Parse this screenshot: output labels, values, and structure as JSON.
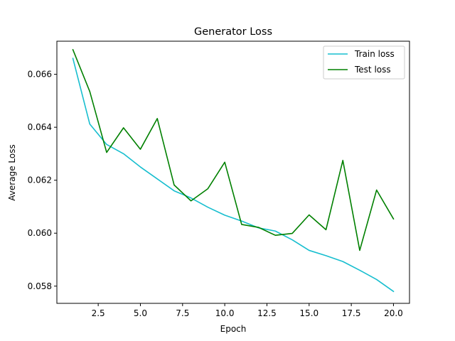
{
  "chart_data": {
    "type": "line",
    "title": "Generator Loss",
    "xlabel": "Epoch",
    "ylabel": "Average Loss",
    "xlim": [
      0.05,
      20.95
    ],
    "ylim": [
      0.05735,
      0.06725
    ],
    "xticks": [
      2.5,
      5.0,
      7.5,
      10.0,
      12.5,
      15.0,
      17.5,
      20.0
    ],
    "xtick_labels": [
      "2.5",
      "5.0",
      "7.5",
      "10.0",
      "12.5",
      "15.0",
      "17.5",
      "20.0"
    ],
    "yticks": [
      0.058,
      0.06,
      0.062,
      0.064,
      0.066
    ],
    "ytick_labels": [
      "0.058",
      "0.060",
      "0.062",
      "0.064",
      "0.066"
    ],
    "grid": false,
    "legend_position": "top-right",
    "x": [
      1,
      2,
      3,
      4,
      5,
      6,
      7,
      8,
      9,
      10,
      11,
      12,
      13,
      14,
      15,
      16,
      17,
      18,
      19,
      20
    ],
    "series": [
      {
        "name": "Train loss",
        "color": "#17becf",
        "values": [
          0.0666,
          0.06412,
          0.06335,
          0.063,
          0.0625,
          0.06205,
          0.0616,
          0.06133,
          0.06098,
          0.06068,
          0.06046,
          0.0602,
          0.06008,
          0.05975,
          0.05935,
          0.05915,
          0.05893,
          0.0586,
          0.05825,
          0.0578
        ]
      },
      {
        "name": "Test loss",
        "color": "#008000",
        "values": [
          0.06693,
          0.06535,
          0.06305,
          0.06398,
          0.06317,
          0.06433,
          0.06182,
          0.06122,
          0.06168,
          0.06268,
          0.06033,
          0.06022,
          0.05992,
          0.05999,
          0.06069,
          0.06013,
          0.06275,
          0.05935,
          0.06163,
          0.06054
        ]
      }
    ]
  }
}
